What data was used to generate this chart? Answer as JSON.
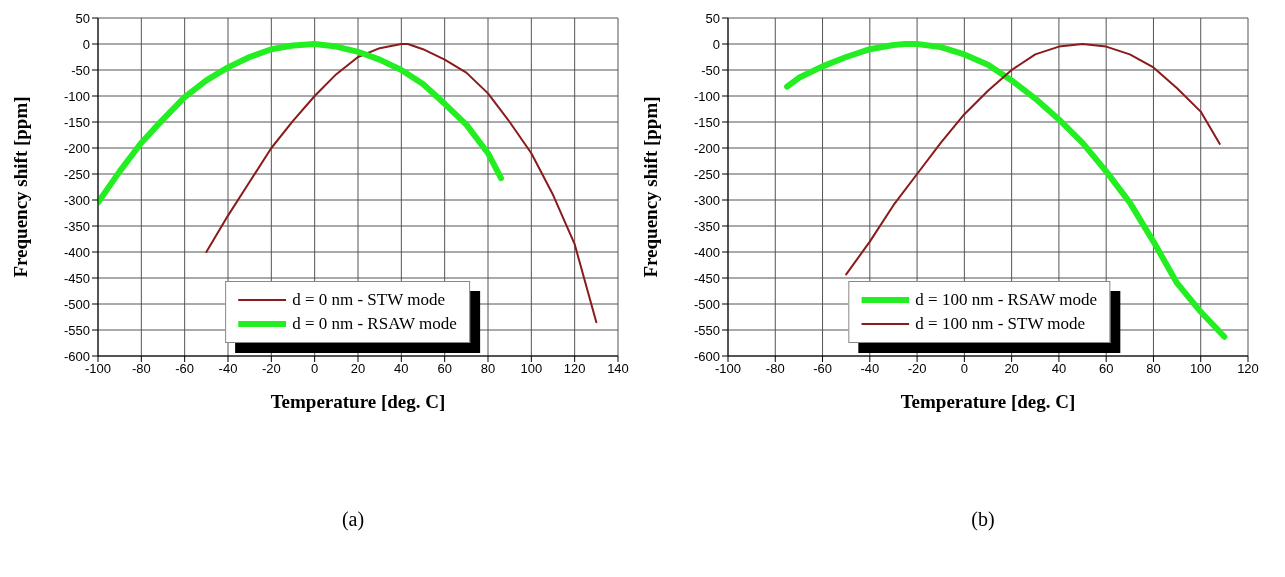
{
  "chart_data": [
    {
      "type": "line",
      "xlabel": "Temperature [deg. C]",
      "ylabel": "Frequency shift [ppm]",
      "annotations": [
        "(a)"
      ],
      "xlim": [
        -100,
        140
      ],
      "xticks": [
        -100,
        -80,
        -60,
        -40,
        -20,
        0,
        20,
        40,
        60,
        80,
        100,
        120,
        140
      ],
      "ylim": [
        -600,
        50
      ],
      "yticks": [
        -600,
        -550,
        -500,
        -450,
        -400,
        -350,
        -300,
        -250,
        -200,
        -150,
        -100,
        -50,
        0,
        50
      ],
      "grid": true,
      "legend": "bottom",
      "marker": "none",
      "line_style": "solid",
      "series": [
        {
          "name": "d = 0 nm - STW mode",
          "color": "#8b1a1a",
          "x": [
            -50,
            -40,
            -30,
            -20,
            -10,
            0,
            10,
            20,
            30,
            40,
            43,
            50,
            60,
            70,
            80,
            90,
            100,
            110,
            120,
            130
          ],
          "values": [
            -400,
            -330,
            -265,
            -200,
            -148,
            -100,
            -58,
            -25,
            -8,
            0,
            0,
            -10,
            -30,
            -55,
            -95,
            -150,
            -210,
            -290,
            -385,
            -535
          ]
        },
        {
          "name": "d = 0 nm - RSAW mode",
          "color": "#22ee22",
          "x": [
            -100,
            -90,
            -80,
            -70,
            -60,
            -50,
            -40,
            -30,
            -20,
            -10,
            0,
            10,
            20,
            30,
            40,
            50,
            60,
            70,
            80,
            86
          ],
          "values": [
            -305,
            -245,
            -190,
            -145,
            -102,
            -70,
            -45,
            -25,
            -10,
            -3,
            0,
            -5,
            -15,
            -30,
            -50,
            -77,
            -115,
            -155,
            -210,
            -258
          ]
        }
      ]
    },
    {
      "type": "line",
      "xlabel": "Temperature [deg. C]",
      "ylabel": "Frequency shift [ppm]",
      "annotations": [
        "(b)"
      ],
      "xlim": [
        -100,
        120
      ],
      "xticks": [
        -100,
        -80,
        -60,
        -40,
        -20,
        0,
        20,
        40,
        60,
        80,
        100,
        120
      ],
      "ylim": [
        -600,
        50
      ],
      "yticks": [
        -600,
        -550,
        -500,
        -450,
        -400,
        -350,
        -300,
        -250,
        -200,
        -150,
        -100,
        -50,
        0,
        50
      ],
      "grid": true,
      "legend": "bottom",
      "marker": "none",
      "line_style": "solid",
      "series": [
        {
          "name": "d = 100 nm - RSAW mode",
          "color": "#22ee22",
          "x": [
            -75,
            -70,
            -60,
            -50,
            -40,
            -30,
            -25,
            -20,
            -10,
            0,
            10,
            20,
            30,
            40,
            50,
            60,
            70,
            80,
            90,
            100,
            110
          ],
          "values": [
            -82,
            -65,
            -43,
            -25,
            -10,
            -2,
            0,
            0,
            -6,
            -20,
            -40,
            -70,
            -105,
            -145,
            -190,
            -245,
            -305,
            -380,
            -460,
            -515,
            -563
          ]
        },
        {
          "name": "d = 100 nm - STW mode",
          "color": "#8b1a1a",
          "x": [
            -50,
            -40,
            -30,
            -20,
            -10,
            0,
            10,
            20,
            30,
            40,
            50,
            60,
            70,
            80,
            90,
            100,
            108
          ],
          "values": [
            -443,
            -380,
            -310,
            -250,
            -190,
            -135,
            -90,
            -50,
            -20,
            -5,
            0,
            -5,
            -20,
            -45,
            -85,
            -130,
            -192
          ]
        }
      ]
    }
  ]
}
